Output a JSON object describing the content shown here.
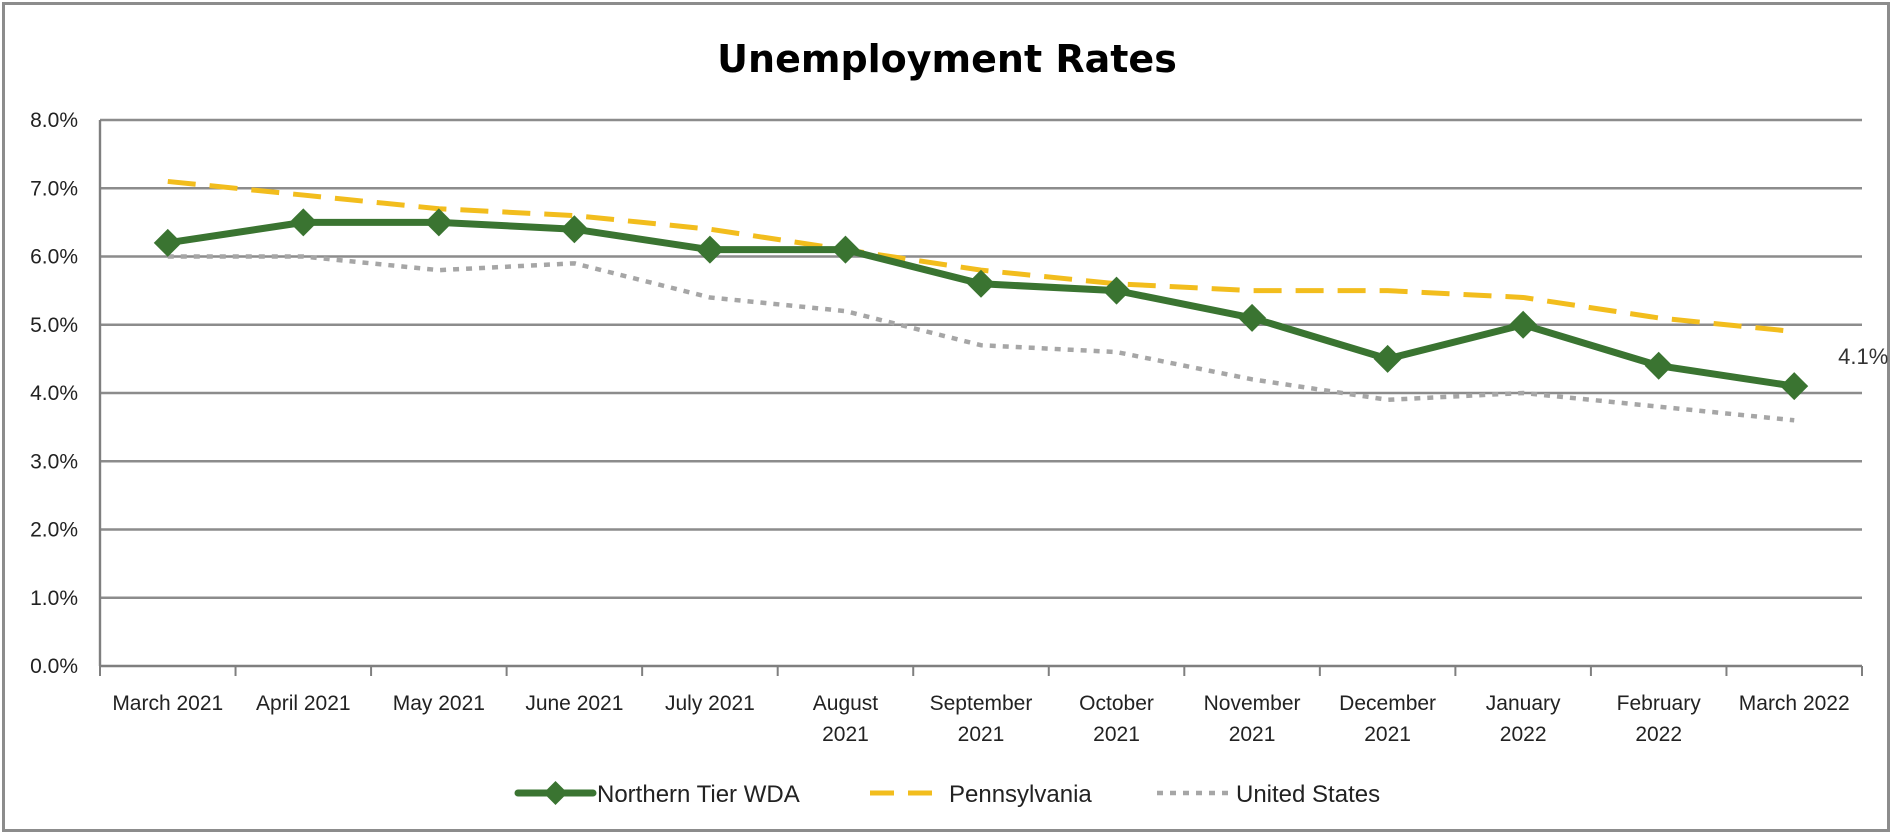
{
  "chart_data": {
    "type": "line",
    "title": "Unemployment Rates",
    "xlabel": "",
    "ylabel": "",
    "ylim": [
      0,
      8
    ],
    "yticks": [
      "0.0%",
      "1.0%",
      "2.0%",
      "3.0%",
      "4.0%",
      "5.0%",
      "6.0%",
      "7.0%",
      "8.0%"
    ],
    "categories": [
      [
        "March 2021"
      ],
      [
        "April 2021"
      ],
      [
        "May 2021"
      ],
      [
        "June 2021"
      ],
      [
        "July 2021"
      ],
      [
        "August",
        "2021"
      ],
      [
        "September",
        "2021"
      ],
      [
        "October",
        "2021"
      ],
      [
        "November",
        "2021"
      ],
      [
        "December",
        "2021"
      ],
      [
        "January",
        "2022"
      ],
      [
        "February",
        "2022"
      ],
      [
        "March 2022"
      ]
    ],
    "series": [
      {
        "name": "Northern Tier WDA",
        "color": "#3a7431",
        "style": "solid-diamond",
        "values": [
          6.2,
          6.5,
          6.5,
          6.4,
          6.1,
          6.1,
          5.6,
          5.5,
          5.1,
          4.5,
          5.0,
          4.4,
          4.1
        ]
      },
      {
        "name": "Pennsylvania",
        "color": "#f2bd1d",
        "style": "dashed",
        "values": [
          7.1,
          6.9,
          6.7,
          6.6,
          6.4,
          6.1,
          5.8,
          5.6,
          5.5,
          5.5,
          5.4,
          5.1,
          4.9
        ]
      },
      {
        "name": "United States",
        "color": "#a6a6a6",
        "style": "dotted",
        "values": [
          6.0,
          6.0,
          5.8,
          5.9,
          5.4,
          5.2,
          4.7,
          4.6,
          4.2,
          3.9,
          4.0,
          3.8,
          3.6
        ]
      }
    ],
    "annotations": [
      {
        "series": "Northern Tier WDA",
        "index": 12,
        "text": "4.1%"
      }
    ],
    "grid": true,
    "legend_position": "bottom"
  }
}
